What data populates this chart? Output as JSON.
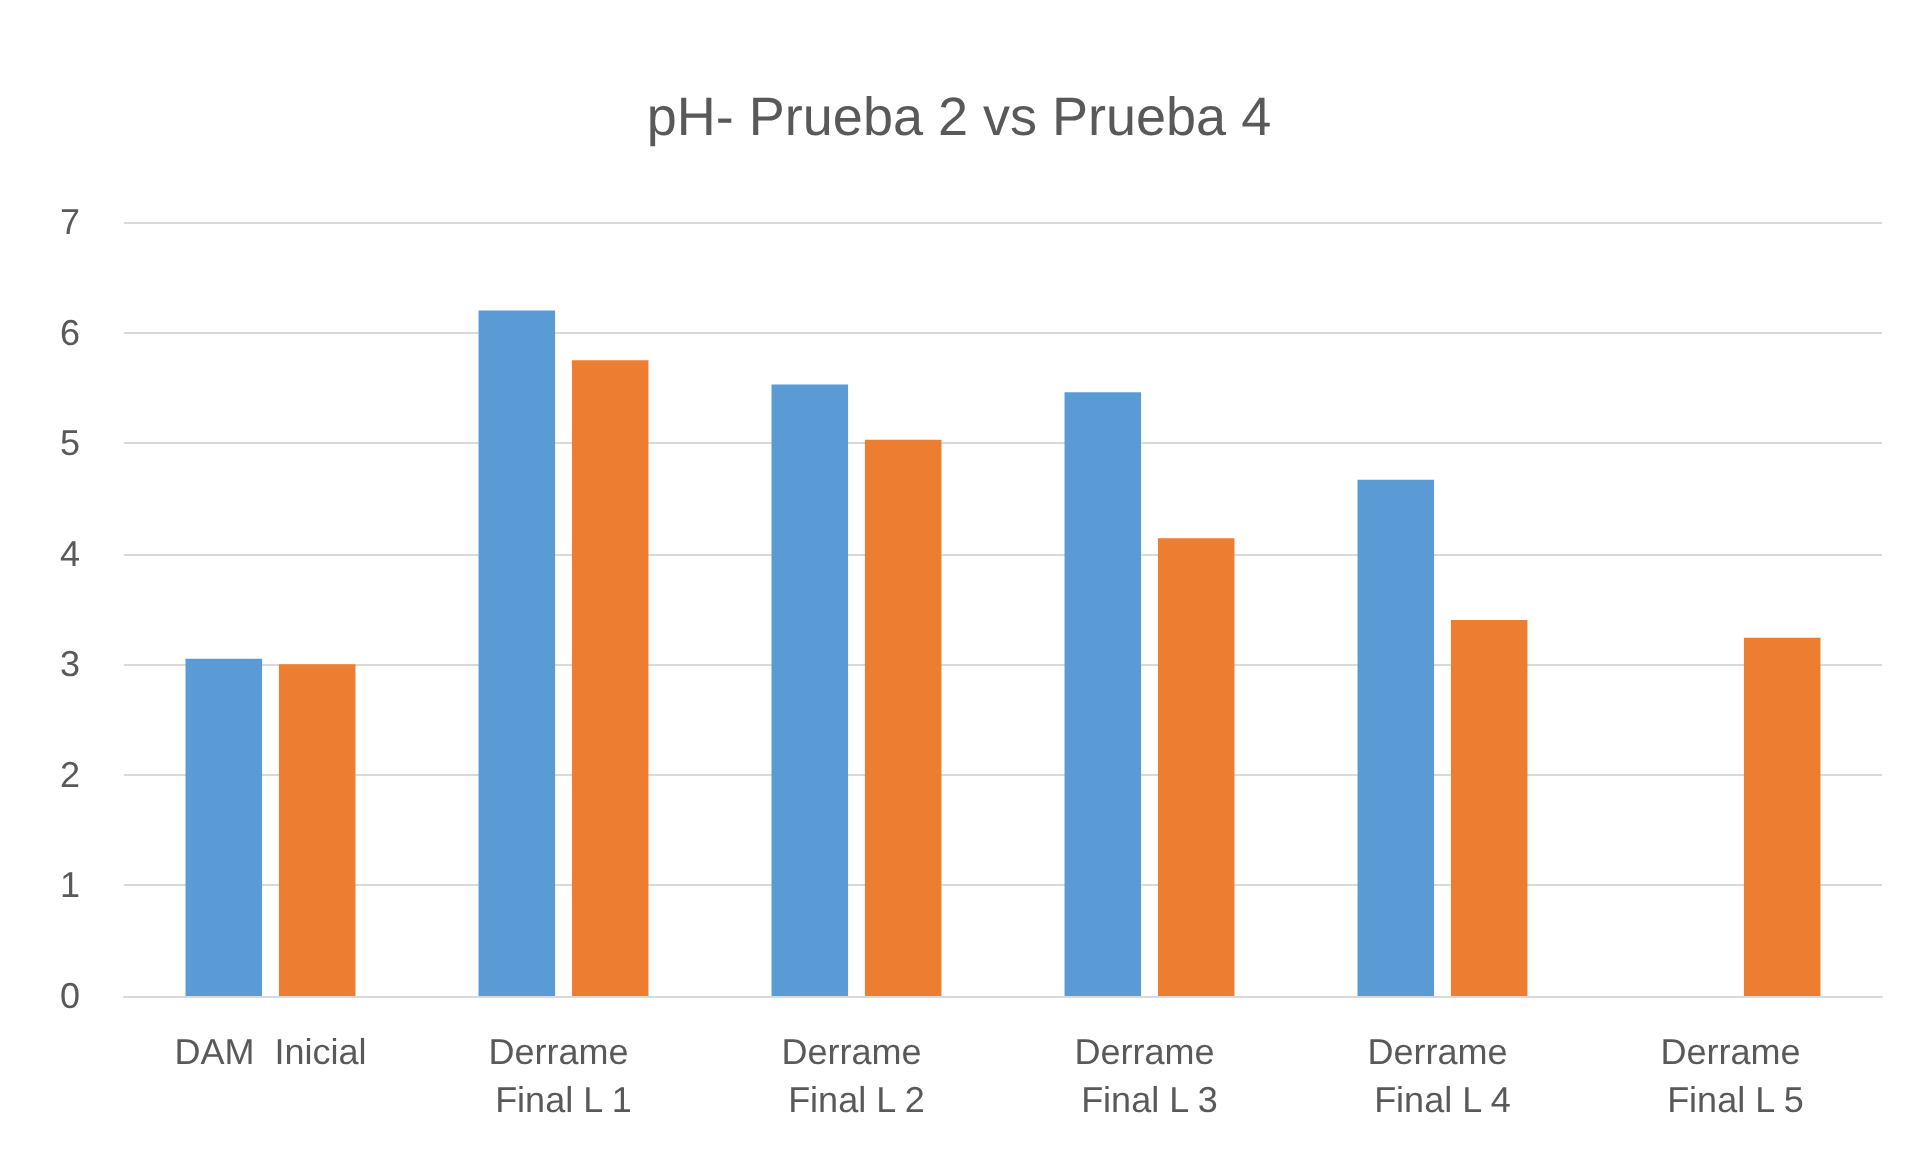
{
  "chart_data": {
    "type": "bar",
    "title": "pH- Prueba 2 vs Prueba 4",
    "categories": [
      "DAM  Inicial",
      "Derrame Final L 1",
      "Derrame Final L 2",
      "Derrame Final L 3",
      "Derrame Final L 4",
      "Derrame Final L 5"
    ],
    "series": [
      {
        "color": "#5b9bd5",
        "values": [
          3.05,
          6.2,
          5.53,
          5.46,
          4.67,
          null
        ]
      },
      {
        "color": "#ed7d31",
        "values": [
          3.0,
          5.75,
          5.03,
          4.14,
          3.4,
          3.24
        ]
      }
    ],
    "ylim": [
      0,
      7
    ],
    "yticks": [
      0,
      1,
      2,
      3,
      4,
      5,
      6,
      7
    ],
    "grid": "y"
  }
}
